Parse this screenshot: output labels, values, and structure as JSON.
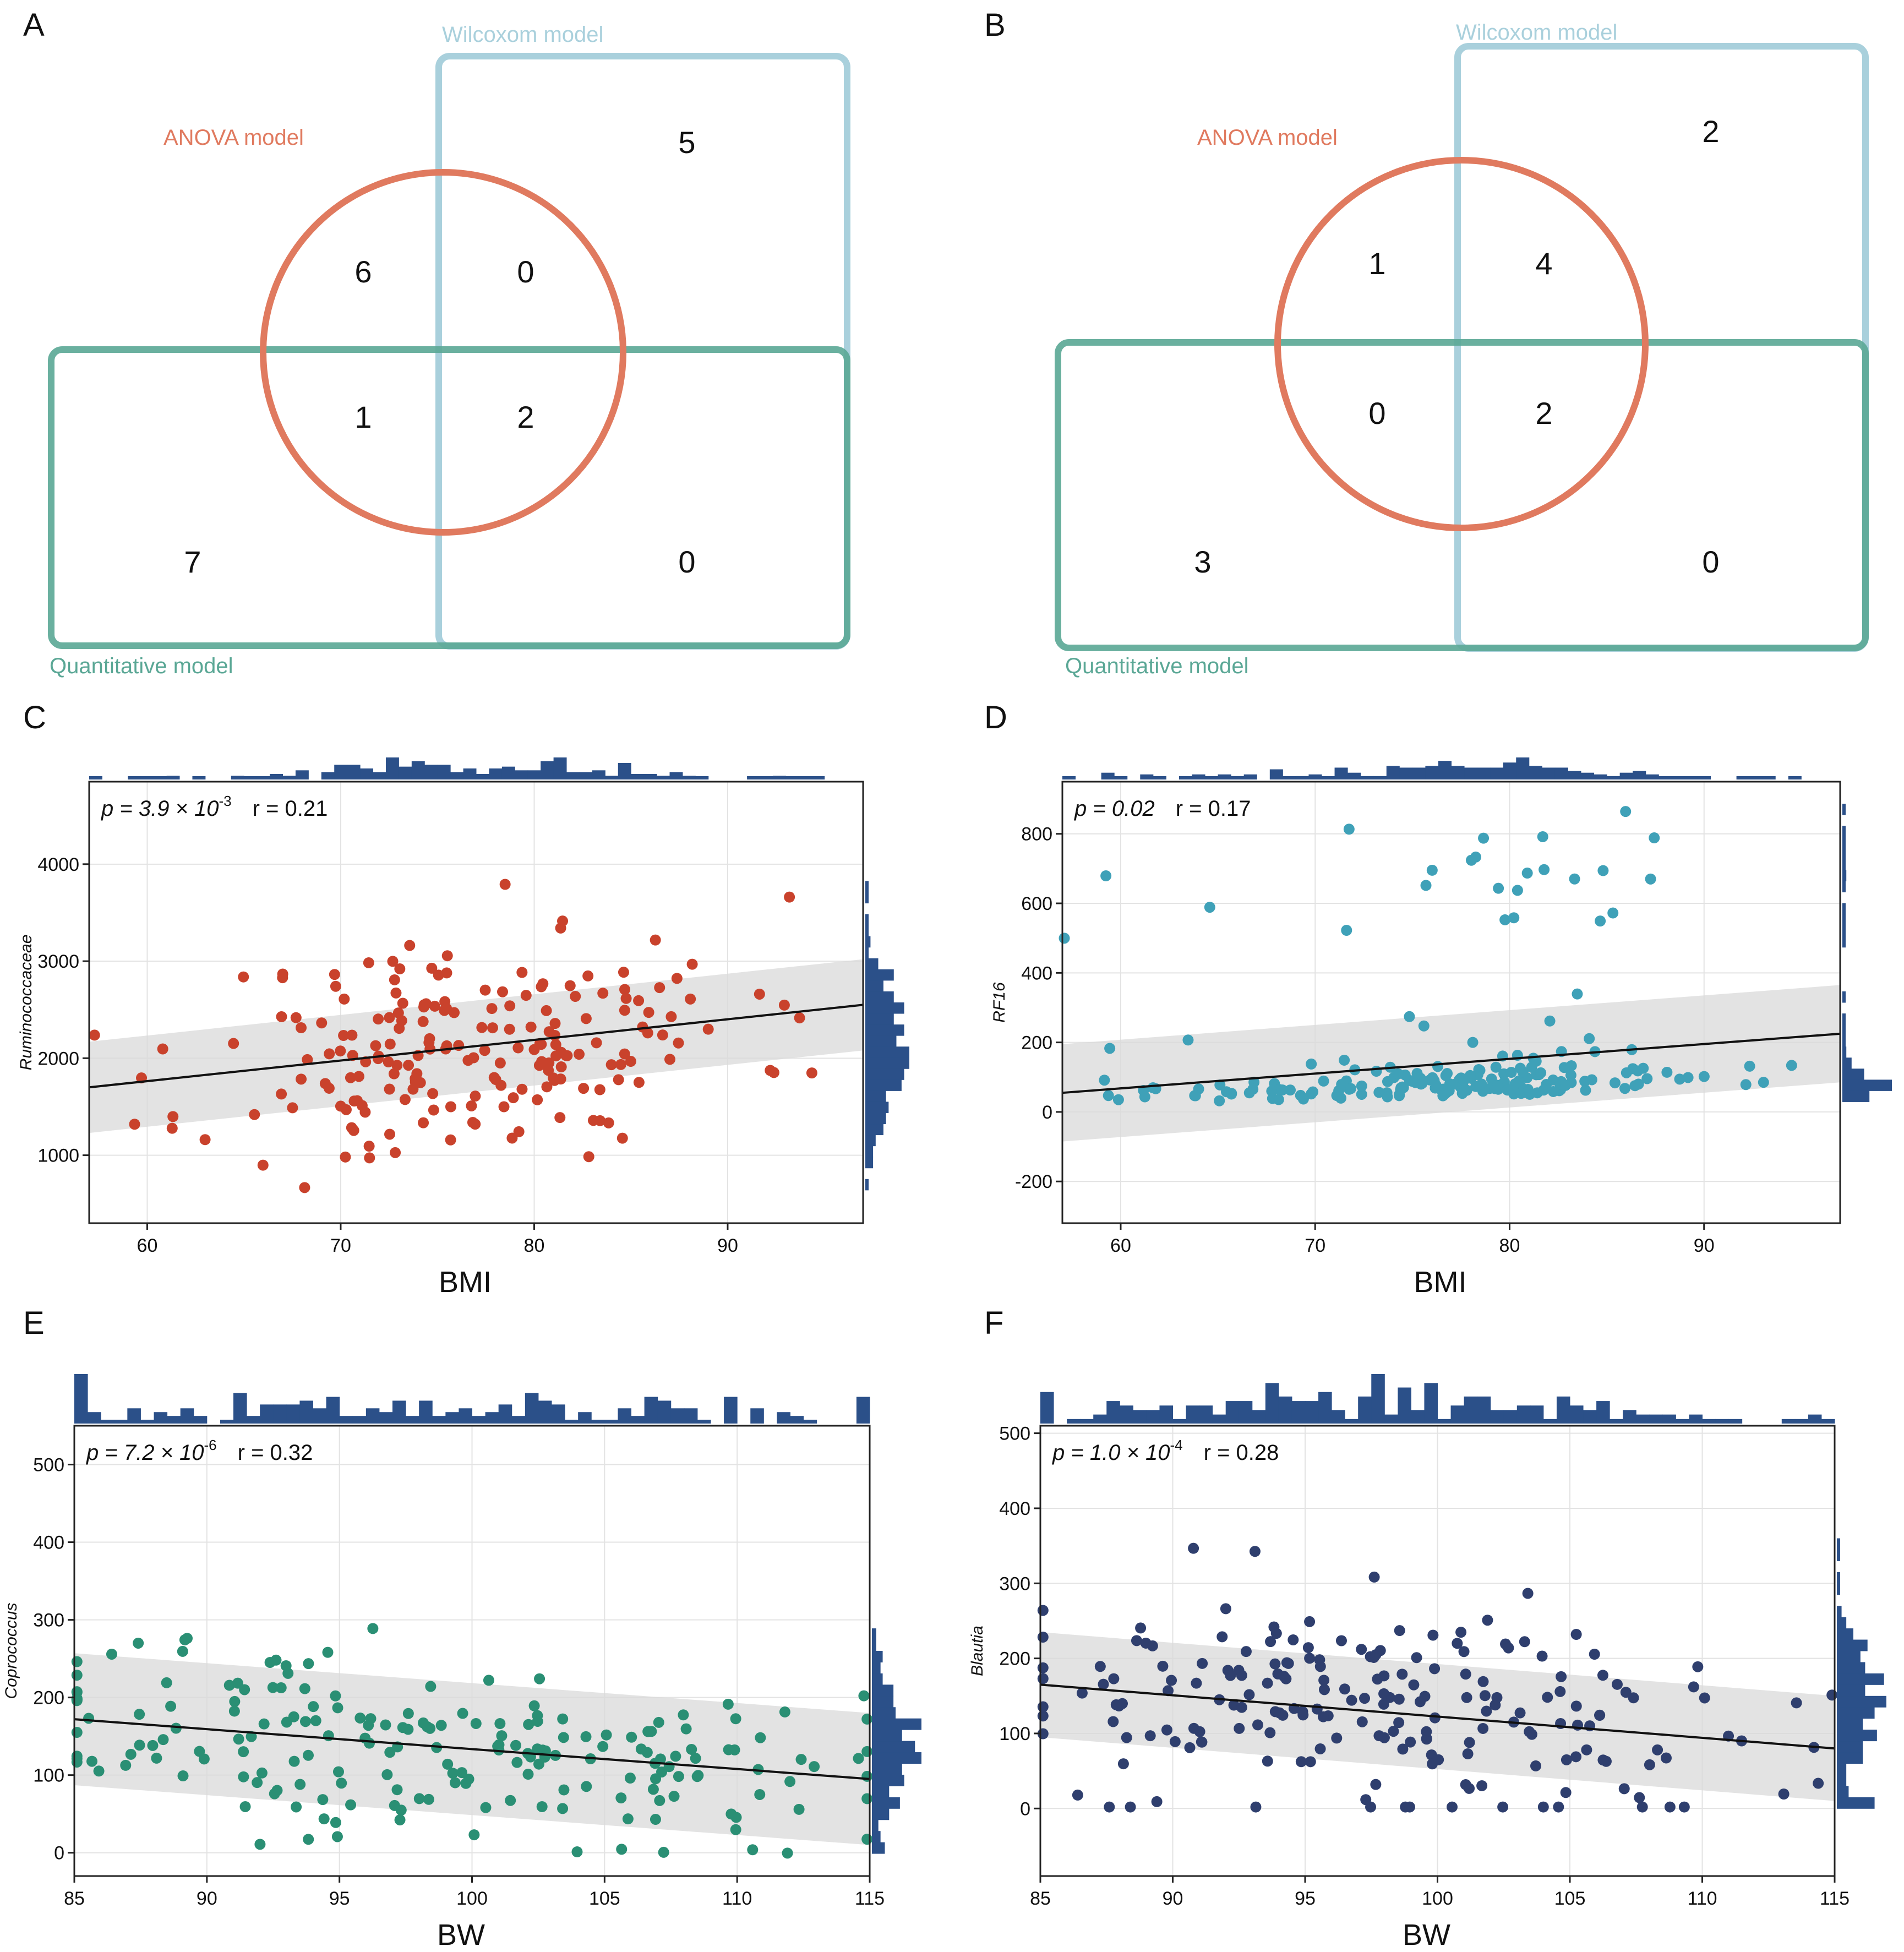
{
  "figure": {
    "panel_labels": [
      "A",
      "B",
      "C",
      "D",
      "E",
      "F"
    ]
  },
  "venn": [
    {
      "label": "A",
      "sets": {
        "anova": "ANOVA model",
        "wilcoxon": "Wilcoxom model",
        "quantitative": "Quantitative model"
      },
      "colors": {
        "anova": "#e07a5f",
        "wilcoxon": "#a9d0dc",
        "quantitative": "#5aa795"
      },
      "counts": {
        "wilcoxon_only": "5",
        "anova_only": "6",
        "anova_wilcoxon": "0",
        "anova_quant": "1",
        "all_three": "2",
        "quant_only": "7",
        "wilcoxon_quant": "0"
      }
    },
    {
      "label": "B",
      "sets": {
        "anova": "ANOVA model",
        "wilcoxon": "Wilcoxom model",
        "quantitative": "Quantitative model"
      },
      "colors": {
        "anova": "#e07a5f",
        "wilcoxon": "#a9d0dc",
        "quantitative": "#5aa795"
      },
      "counts": {
        "wilcoxon_only": "2",
        "anova_only": "1",
        "anova_wilcoxon": "4",
        "anova_quant": "0",
        "all_three": "2",
        "quant_only": "3",
        "wilcoxon_quant": "0"
      }
    }
  ],
  "chart_data": [
    {
      "label": "C",
      "type": "scatter",
      "xlabel": "BMI",
      "ylabel": "Ruminococcaceae",
      "annotation": {
        "p_prefix": "p = 3.9 × 10",
        "p_exp": "-3",
        "r_text": "r = 0.21"
      },
      "xlim": [
        57,
        97
      ],
      "ylim": [
        300,
        4850
      ],
      "xticks": [
        "60",
        "70",
        "80",
        "90"
      ],
      "xtick_values": [
        60,
        70,
        80,
        90
      ],
      "yticks": [
        "1000",
        "2000",
        "3000",
        "4000"
      ],
      "ytick_values": [
        1000,
        2000,
        3000,
        4000
      ],
      "regression": {
        "x0": 57,
        "y0": 1700,
        "x1": 97,
        "y1": 2550,
        "band": 470
      },
      "point_color": "#c9422c",
      "seed": 11,
      "n_points": 200,
      "x_mean": 77,
      "x_sd": 7,
      "y_mean": 2050,
      "y_sd": 600
    },
    {
      "label": "D",
      "type": "scatter",
      "xlabel": "BMI",
      "ylabel": "RF16",
      "annotation": {
        "p_prefix": "p = 0.02",
        "p_exp": "",
        "r_text": "r = 0.17"
      },
      "xlim": [
        57,
        97
      ],
      "ylim": [
        -320,
        950
      ],
      "xticks": [
        "60",
        "70",
        "80",
        "90"
      ],
      "xtick_values": [
        60,
        70,
        80,
        90
      ],
      "yticks": [
        "-200",
        "0",
        "200",
        "400",
        "600",
        "800"
      ],
      "ytick_values": [
        -200,
        0,
        200,
        400,
        600,
        800
      ],
      "regression": {
        "x0": 57,
        "y0": 55,
        "x1": 97,
        "y1": 225,
        "band": 140
      },
      "point_color": "#3fa1b8",
      "seed": 23,
      "n_points": 200,
      "x_mean": 77,
      "x_sd": 7,
      "y_mean": 80,
      "y_sd": 120
    },
    {
      "label": "E",
      "type": "scatter",
      "xlabel": "BW",
      "ylabel": "Coprococcus",
      "annotation": {
        "p_prefix": "p = 7.2 × 10",
        "p_exp": "-6",
        "r_text": "r = 0.32"
      },
      "xlim": [
        85,
        115
      ],
      "ylim": [
        -30,
        550
      ],
      "xticks": [
        "85",
        "90",
        "95",
        "100",
        "105",
        "110",
        "115"
      ],
      "xtick_values": [
        85,
        90,
        95,
        100,
        105,
        110,
        115
      ],
      "yticks": [
        "0",
        "100",
        "200",
        "300",
        "400",
        "500"
      ],
      "ytick_values": [
        0,
        100,
        200,
        300,
        400,
        500
      ],
      "regression": {
        "x0": 85,
        "y0": 172,
        "x1": 115,
        "y1": 95,
        "band": 85
      },
      "point_color": "#2a8f74",
      "seed": 37,
      "n_points": 200,
      "x_mean": 98,
      "x_sd": 8,
      "y_mean": 135,
      "y_sd": 60
    },
    {
      "label": "F",
      "type": "scatter",
      "xlabel": "BW",
      "ylabel": "Blautia",
      "annotation": {
        "p_prefix": "p = 1.0 × 10",
        "p_exp": "-4",
        "r_text": "r = 0.28"
      },
      "xlim": [
        85,
        115
      ],
      "ylim": [
        -90,
        510
      ],
      "xticks": [
        "85",
        "90",
        "95",
        "100",
        "105",
        "110",
        "115"
      ],
      "xtick_values": [
        85,
        90,
        95,
        100,
        105,
        110,
        115
      ],
      "yticks": [
        "0",
        "100",
        "200",
        "300",
        "400",
        "500"
      ],
      "ytick_values": [
        0,
        100,
        200,
        300,
        400,
        500
      ],
      "regression": {
        "x0": 85,
        "y0": 165,
        "x1": 115,
        "y1": 80,
        "band": 70
      },
      "point_color": "#2f3f6e",
      "seed": 53,
      "n_points": 200,
      "x_mean": 98,
      "x_sd": 8,
      "y_mean": 125,
      "y_sd": 80
    }
  ]
}
